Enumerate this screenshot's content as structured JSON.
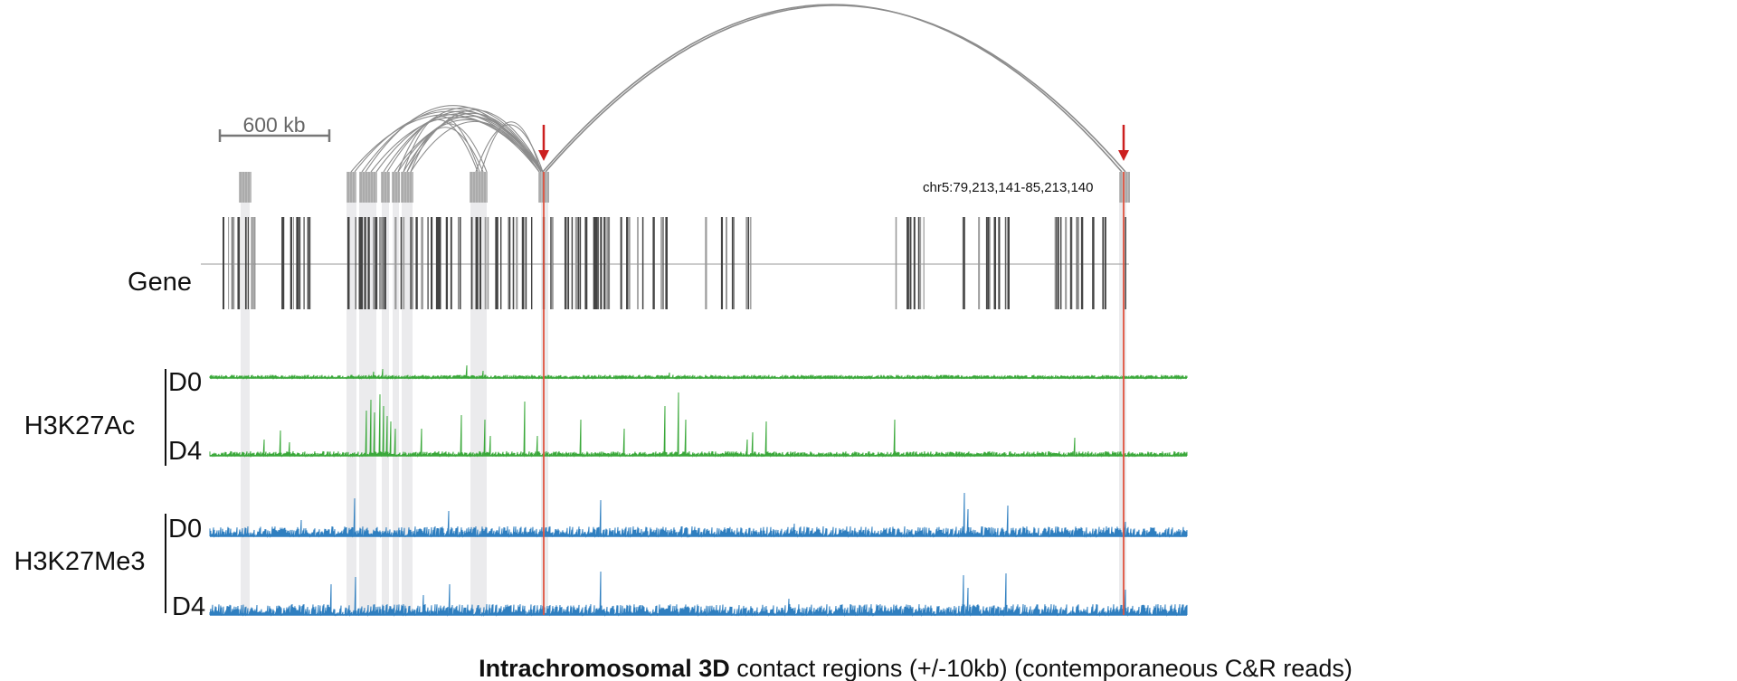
{
  "scale_bar": {
    "label": "600 kb"
  },
  "region_label": "chr5:79,213,141-85,213,140",
  "gene_track_label": "Gene",
  "tracks": [
    {
      "mark": "H3K27Ac",
      "color": "#3aa83a",
      "rows": [
        "D0",
        "D4"
      ]
    },
    {
      "mark": "H3K27Me3",
      "color": "#2f7fc0",
      "rows": [
        "D0",
        "D4"
      ]
    }
  ],
  "caption": {
    "bold": "Intrachromosomal 3D",
    "rest": " contact regions (+/-10kb) (contemporaneous C&R reads)"
  },
  "colors": {
    "highlight_line": "#e0533f",
    "arrow": "#cc1f1f",
    "arc": "#8c8c8c",
    "gene": "#444444",
    "shade": "#e8e8ea"
  },
  "icons": {
    "marker": "down-arrow-icon"
  }
}
